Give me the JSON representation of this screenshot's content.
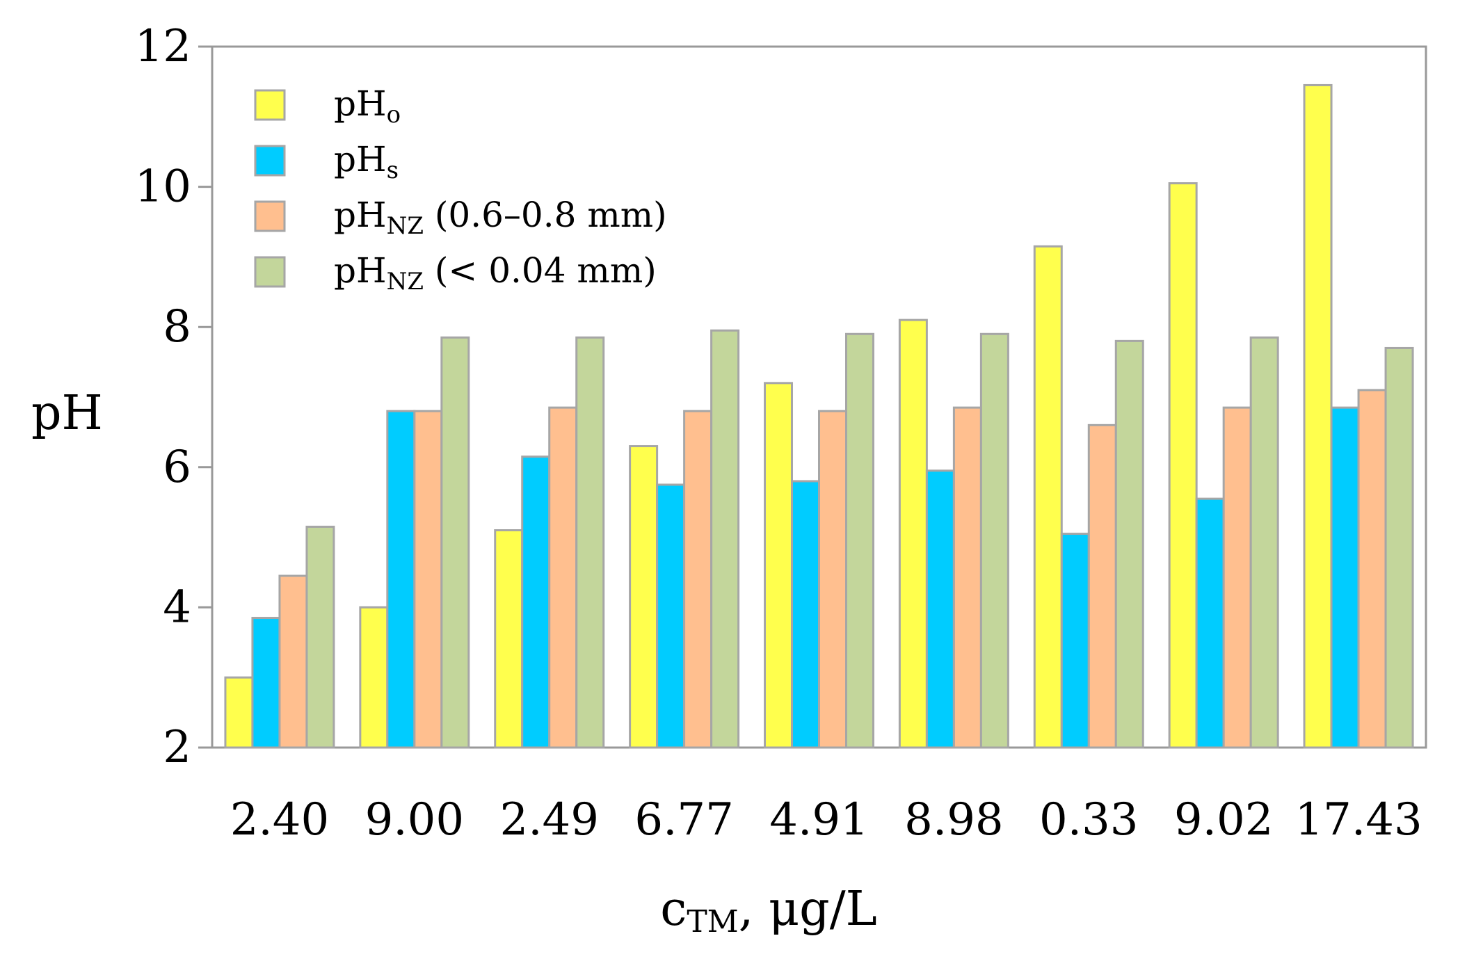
{
  "chart_data": {
    "type": "bar",
    "title": "",
    "xlabel": "c",
    "xlabel_sub": "TM",
    "xlabel_suffix": ", μg/L",
    "ylabel": "pH",
    "ylim": [
      2,
      12
    ],
    "yticks": [
      2,
      4,
      6,
      8,
      10,
      12
    ],
    "ytick_labels": [
      "2",
      "4",
      "6",
      "8",
      "10",
      "12"
    ],
    "categories": [
      "2.40",
      "9.00",
      "2.49",
      "6.77",
      "4.91",
      "8.98",
      "0.33",
      "9.02",
      "17.43"
    ],
    "grid": false,
    "legend_position": "top-left",
    "series": [
      {
        "name": "pH",
        "sub": "o",
        "suffix": "",
        "color": "#FFFF4D",
        "values": [
          3.0,
          4.0,
          5.1,
          6.3,
          7.2,
          8.1,
          9.15,
          10.05,
          11.45
        ]
      },
      {
        "name": "pH",
        "sub": "s",
        "suffix": "",
        "color": "#00CCFF",
        "values": [
          3.85,
          6.8,
          6.15,
          5.75,
          5.8,
          5.95,
          5.05,
          5.55,
          6.85
        ]
      },
      {
        "name": "pH",
        "sub": "NZ",
        "suffix": " (0.6–0.8 mm)",
        "color": "#FFBF8F",
        "values": [
          4.45,
          6.8,
          6.85,
          6.8,
          6.8,
          6.85,
          6.6,
          6.85,
          7.1
        ]
      },
      {
        "name": "pH",
        "sub": "NZ",
        "suffix": " (< 0.04 mm)",
        "color": "#C3D69B",
        "values": [
          5.15,
          7.85,
          7.85,
          7.95,
          7.9,
          7.9,
          7.8,
          7.85,
          7.7
        ]
      }
    ]
  }
}
